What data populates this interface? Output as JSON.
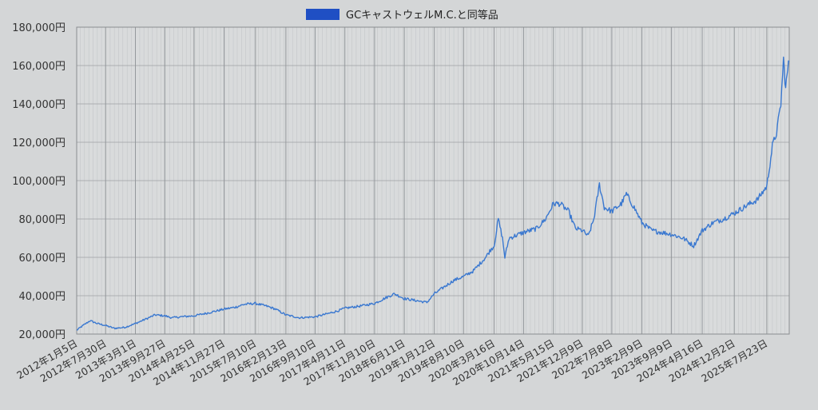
{
  "chart_data": {
    "type": "line",
    "title": "",
    "xlabel": "",
    "ylabel": "",
    "legend": {
      "position": "top-center"
    },
    "grid": true,
    "ylim": [
      20000,
      180000
    ],
    "yticks": [
      20000,
      40000,
      60000,
      80000,
      100000,
      120000,
      140000,
      160000,
      180000
    ],
    "ytick_labels": [
      "20,000円",
      "40,000円",
      "60,000円",
      "80,000円",
      "100,000円",
      "120,000円",
      "140,000円",
      "160,000円",
      "180,000円"
    ],
    "xlim": [
      "2012-01-05",
      "2025-12-31"
    ],
    "xtick_labels": [
      "2012年1月5日",
      "2012年7月30日",
      "2013年3月1日",
      "2013年9月27日",
      "2014年4月25日",
      "2014年11月27日",
      "2015年7月10日",
      "2016年2月13日",
      "2016年9月10日",
      "2017年4月11日",
      "2017年11月10日",
      "2018年6月11日",
      "2019年1月12日",
      "2019年8月10日",
      "2020年3月16日",
      "2020年10月14日",
      "2021年5月15日",
      "2021年12月9日",
      "2022年7月8日",
      "2023年2月9日",
      "2023年9月9日",
      "2024年4月16日",
      "2024年12月2日",
      "2025年7月23日"
    ],
    "xtick_dates": [
      "2012-01-05",
      "2012-07-30",
      "2013-03-01",
      "2013-09-27",
      "2014-04-25",
      "2014-11-27",
      "2015-07-10",
      "2016-02-13",
      "2016-09-10",
      "2017-04-11",
      "2017-11-10",
      "2018-06-11",
      "2019-01-12",
      "2019-08-10",
      "2020-03-16",
      "2020-10-14",
      "2021-05-15",
      "2021-12-09",
      "2022-07-08",
      "2023-02-09",
      "2023-09-09",
      "2024-04-16",
      "2024-12-02",
      "2025-07-23"
    ],
    "series": [
      {
        "name": "GCキャストウェルM.C.と同等品",
        "color": "#1f4fc4",
        "line_color": "#3a78d0",
        "points": [
          [
            "2012-01-05",
            22000
          ],
          [
            "2012-02-20",
            24500
          ],
          [
            "2012-04-10",
            27000
          ],
          [
            "2012-06-01",
            25500
          ],
          [
            "2012-07-30",
            24500
          ],
          [
            "2012-10-01",
            23000
          ],
          [
            "2012-12-15",
            23500
          ],
          [
            "2013-03-01",
            25500
          ],
          [
            "2013-05-20",
            28000
          ],
          [
            "2013-07-20",
            30000
          ],
          [
            "2013-09-27",
            29500
          ],
          [
            "2013-11-20",
            28500
          ],
          [
            "2014-01-20",
            29000
          ],
          [
            "2014-04-25",
            29500
          ],
          [
            "2014-08-01",
            31000
          ],
          [
            "2014-11-27",
            33000
          ],
          [
            "2015-02-15",
            34000
          ],
          [
            "2015-04-20",
            35500
          ],
          [
            "2015-07-10",
            36000
          ],
          [
            "2015-10-01",
            34500
          ],
          [
            "2015-12-01",
            33000
          ],
          [
            "2016-02-13",
            30000
          ],
          [
            "2016-05-20",
            28500
          ],
          [
            "2016-09-10",
            29000
          ],
          [
            "2016-12-01",
            30500
          ],
          [
            "2017-02-15",
            32000
          ],
          [
            "2017-04-11",
            33500
          ],
          [
            "2017-07-20",
            34500
          ],
          [
            "2017-11-10",
            36000
          ],
          [
            "2018-02-01",
            39000
          ],
          [
            "2018-04-01",
            41000
          ],
          [
            "2018-06-11",
            38500
          ],
          [
            "2018-09-01",
            37500
          ],
          [
            "2018-11-20",
            36500
          ],
          [
            "2019-01-12",
            41000
          ],
          [
            "2019-04-01",
            45000
          ],
          [
            "2019-06-01",
            48000
          ],
          [
            "2019-08-10",
            50000
          ],
          [
            "2019-10-20",
            53000
          ],
          [
            "2020-01-15",
            60000
          ],
          [
            "2020-02-20",
            64000
          ],
          [
            "2020-03-16",
            66000
          ],
          [
            "2020-04-15",
            80000
          ],
          [
            "2020-05-15",
            70000
          ],
          [
            "2020-06-01",
            60000
          ],
          [
            "2020-07-01",
            70000
          ],
          [
            "2020-10-14",
            73000
          ],
          [
            "2021-01-15",
            75000
          ],
          [
            "2021-03-20",
            80000
          ],
          [
            "2021-05-15",
            88000
          ],
          [
            "2021-07-01",
            88000
          ],
          [
            "2021-09-01",
            84000
          ],
          [
            "2021-10-20",
            75000
          ],
          [
            "2021-12-09",
            74000
          ],
          [
            "2022-01-20",
            71000
          ],
          [
            "2022-03-01",
            80000
          ],
          [
            "2022-04-10",
            98000
          ],
          [
            "2022-05-15",
            86000
          ],
          [
            "2022-07-08",
            84000
          ],
          [
            "2022-09-15",
            88000
          ],
          [
            "2022-10-20",
            93000
          ],
          [
            "2022-12-15",
            86000
          ],
          [
            "2023-02-09",
            78000
          ],
          [
            "2023-04-20",
            74000
          ],
          [
            "2023-07-01",
            73000
          ],
          [
            "2023-09-09",
            72000
          ],
          [
            "2023-12-01",
            70000
          ],
          [
            "2024-02-15",
            66000
          ],
          [
            "2024-04-16",
            74000
          ],
          [
            "2024-07-01",
            78000
          ],
          [
            "2024-09-15",
            80000
          ],
          [
            "2024-12-02",
            83000
          ],
          [
            "2025-03-01",
            87000
          ],
          [
            "2025-05-15",
            90000
          ],
          [
            "2025-07-23",
            97000
          ],
          [
            "2025-09-01",
            118000
          ],
          [
            "2025-10-01",
            125000
          ],
          [
            "2025-11-01",
            140000
          ],
          [
            "2025-11-20",
            163000
          ],
          [
            "2025-12-05",
            148000
          ],
          [
            "2025-12-20",
            158000
          ],
          [
            "2025-12-31",
            162000
          ]
        ]
      }
    ]
  }
}
